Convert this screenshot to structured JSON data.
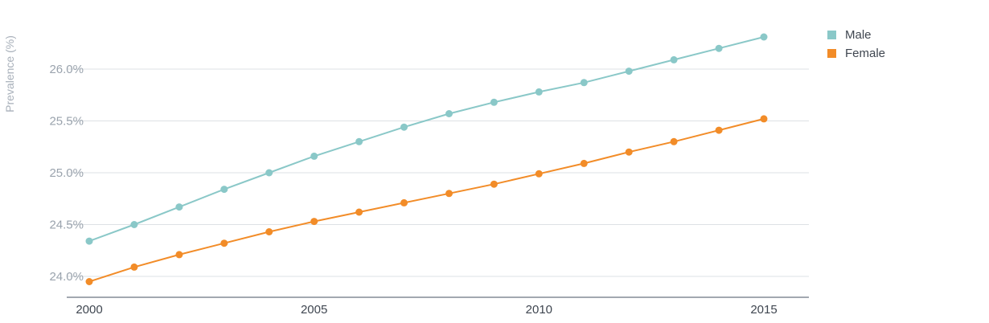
{
  "chart_data": {
    "type": "line",
    "ylabel": "Prevalence (%)",
    "x": [
      2000,
      2001,
      2002,
      2003,
      2004,
      2005,
      2006,
      2007,
      2008,
      2009,
      2010,
      2011,
      2012,
      2013,
      2014,
      2015
    ],
    "x_ticks": [
      "2000",
      "2005",
      "2010",
      "2015"
    ],
    "y_ticks": [
      "24.0%",
      "24.5%",
      "25.0%",
      "25.5%",
      "26.0%"
    ],
    "y_tick_values": [
      24.0,
      24.5,
      25.0,
      25.5,
      26.0
    ],
    "xlim": [
      2000,
      2016
    ],
    "ylim": [
      23.8,
      26.3
    ],
    "grid": true,
    "legend_position": "top-right",
    "series": [
      {
        "name": "Male",
        "color": "#8ac8c8",
        "values": [
          24.34,
          24.5,
          24.67,
          24.84,
          25.0,
          25.16,
          25.3,
          25.44,
          25.57,
          25.68,
          25.78,
          25.87,
          25.98,
          26.09,
          26.2,
          26.31
        ]
      },
      {
        "name": "Female",
        "color": "#f28c28",
        "values": [
          23.95,
          24.09,
          24.21,
          24.32,
          24.43,
          24.53,
          24.62,
          24.71,
          24.8,
          24.89,
          24.99,
          25.09,
          25.2,
          25.3,
          25.41,
          25.52
        ]
      }
    ]
  }
}
